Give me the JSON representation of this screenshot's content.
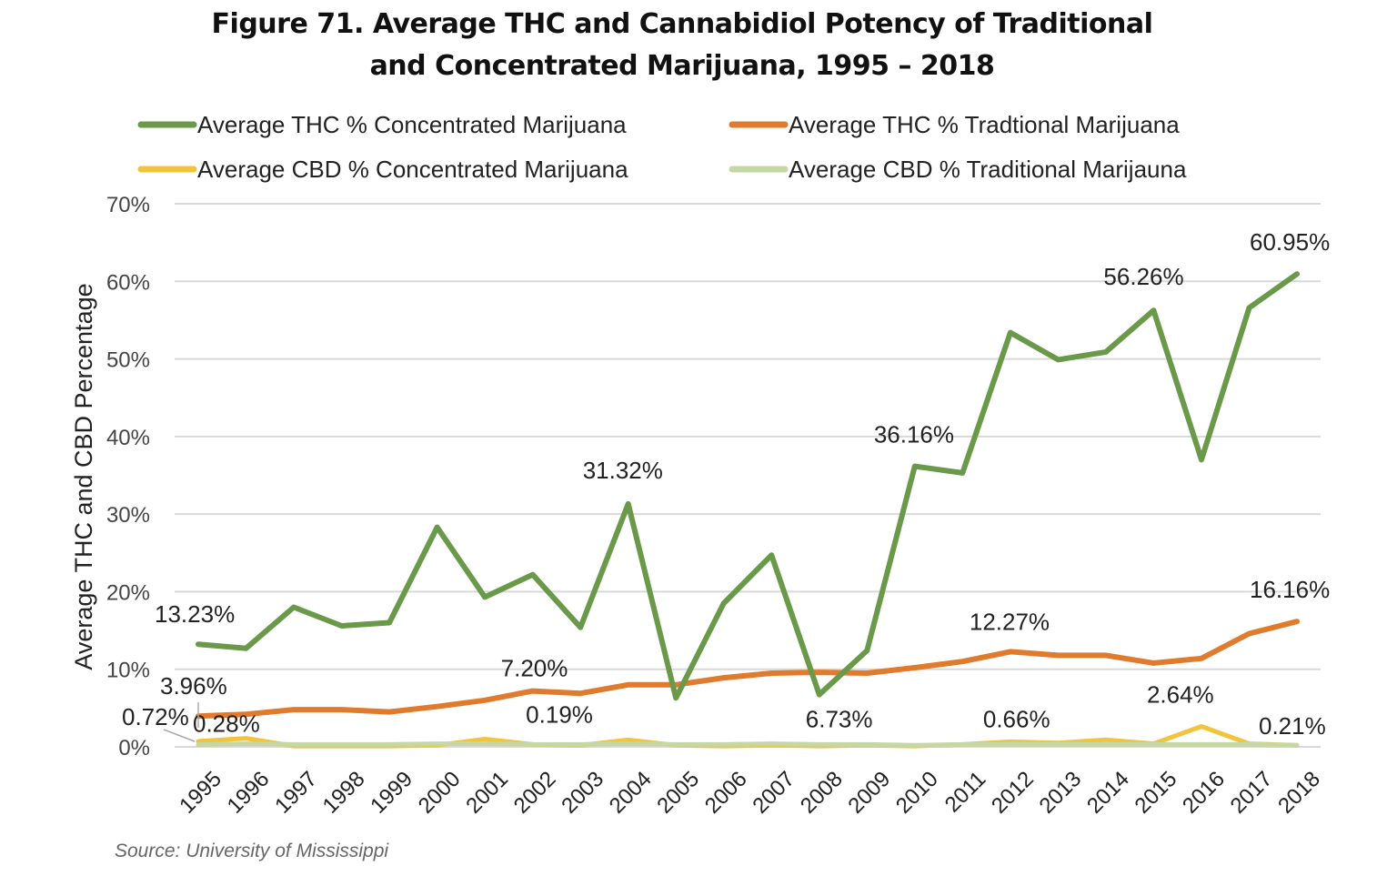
{
  "chart_data": {
    "type": "line",
    "title_line1": "Figure 71. Average THC and Cannabidiol Potency of Traditional",
    "title_line2": "and Concentrated Marijuana, 1995 – 2018",
    "xlabel": "",
    "ylabel": "Average THC and CBD Percentage",
    "ylim": [
      0,
      70
    ],
    "yticks": [
      0,
      10,
      20,
      30,
      40,
      50,
      60,
      70
    ],
    "ytick_labels": [
      "0%",
      "10%",
      "20%",
      "30%",
      "40%",
      "50%",
      "60%",
      "70%"
    ],
    "grid": true,
    "legend_position": "top",
    "categories": [
      "1995",
      "1996",
      "1997",
      "1998",
      "1999",
      "2000",
      "2001",
      "2002",
      "2003",
      "2004",
      "2005",
      "2006",
      "2007",
      "2008",
      "2009",
      "2010",
      "2011",
      "2012",
      "2013",
      "2014",
      "2015",
      "2016",
      "2017",
      "2018"
    ],
    "series": [
      {
        "name": "Average THC % Concentrated Marijuana",
        "color": "#6a994a",
        "values": [
          13.23,
          12.7,
          18.0,
          15.6,
          16.0,
          28.3,
          19.3,
          22.2,
          15.4,
          31.32,
          6.3,
          18.5,
          24.7,
          6.73,
          12.4,
          36.16,
          35.3,
          53.4,
          49.9,
          50.9,
          56.26,
          37.0,
          56.6,
          60.95
        ],
        "labels": {
          "1995": "13.23%",
          "2004": "31.32%",
          "2008": "6.73%",
          "2010": "36.16%",
          "2015": "56.26%",
          "2018": "60.95%"
        }
      },
      {
        "name": "Average THC % Tradtional Marijuana",
        "color": "#e07b2e",
        "values": [
          3.96,
          4.2,
          4.8,
          4.8,
          4.5,
          5.2,
          6.0,
          7.2,
          6.9,
          8.0,
          8.0,
          8.9,
          9.5,
          9.6,
          9.5,
          10.2,
          11.0,
          12.27,
          11.8,
          11.8,
          10.8,
          11.4,
          14.6,
          16.16
        ],
        "labels": {
          "1995": "3.96%",
          "2002": "7.20%",
          "2012": "12.27%",
          "2018": "16.16%"
        }
      },
      {
        "name": "Average CBD % Concentrated Marijuana",
        "color": "#f2c33c",
        "values": [
          0.72,
          1.1,
          0.1,
          0.1,
          0.1,
          0.2,
          1.0,
          0.3,
          0.19,
          0.9,
          0.2,
          0.1,
          0.2,
          0.1,
          0.2,
          0.1,
          0.3,
          0.66,
          0.5,
          0.9,
          0.4,
          2.64,
          0.4,
          0.21
        ],
        "labels": {
          "1995": "0.72%",
          "2003": "0.19%",
          "2012": "0.66%",
          "2016": "2.64%",
          "2018": "0.21%"
        }
      },
      {
        "name": "Average CBD % Traditional Marijauna",
        "color": "#c4d7a4",
        "values": [
          0.28,
          0.4,
          0.3,
          0.3,
          0.3,
          0.4,
          0.4,
          0.3,
          0.3,
          0.4,
          0.3,
          0.3,
          0.4,
          0.3,
          0.3,
          0.2,
          0.3,
          0.3,
          0.3,
          0.3,
          0.3,
          0.3,
          0.3,
          0.2
        ],
        "labels": {
          "1995": "0.28%"
        }
      }
    ]
  },
  "footer": {
    "source": "Source: University of Mississippi"
  }
}
